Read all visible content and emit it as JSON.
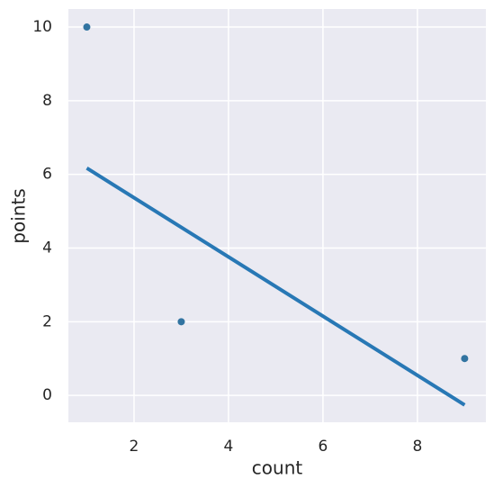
{
  "chart_data": {
    "type": "scatter",
    "xlabel": "count",
    "ylabel": "points",
    "x": [
      1,
      3,
      9
    ],
    "values": [
      10,
      2,
      1
    ],
    "color": "#3274a1",
    "fit": {
      "x": [
        1,
        9
      ],
      "values": [
        6.17,
        -0.26
      ],
      "color": "#2878b5"
    },
    "xlim": [
      0.61,
      9.45
    ],
    "ylim": [
      -0.73,
      10.49
    ],
    "xticks": [
      2,
      4,
      6,
      8
    ],
    "yticks": [
      0,
      2,
      4,
      6,
      8,
      10
    ],
    "grid": true,
    "background": "#eaeaf2"
  }
}
